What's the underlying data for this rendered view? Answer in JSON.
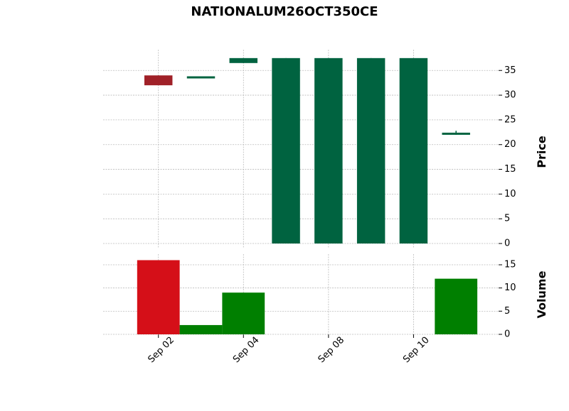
{
  "chart_data": {
    "type": "candlestick",
    "title": "NATIONALUM26OCT350CE",
    "categories": [
      "Sep 02",
      null,
      "Sep 04",
      null,
      "Sep 08",
      null,
      "Sep 10",
      null
    ],
    "open": [
      34,
      33.6,
      36.5,
      0,
      0,
      0,
      0,
      22
    ],
    "high": [
      34,
      33.6,
      37.5,
      37.5,
      37.5,
      37.5,
      37.5,
      22.8
    ],
    "low": [
      32,
      33.6,
      36.5,
      0,
      0,
      0,
      0,
      22
    ],
    "close": [
      32,
      33.6,
      37.5,
      37.5,
      37.5,
      37.5,
      37.5,
      22.2
    ],
    "up_color": "#006340",
    "down_color": "#a02128",
    "ylabel": "Price",
    "ylim": [
      -1,
      39.2
    ],
    "yticks": [
      0,
      5,
      10,
      15,
      20,
      25,
      30,
      35
    ],
    "xlim": [
      -1.3,
      8
    ],
    "grid": true,
    "volume": {
      "values": [
        16,
        2,
        9,
        0,
        0,
        0,
        0,
        12
      ],
      "up_color": "#007f00",
      "down_color": "#d50f18",
      "ylabel": "Volume",
      "ylim": [
        0,
        17.3
      ],
      "yticks": [
        0,
        5,
        10,
        15
      ]
    }
  }
}
